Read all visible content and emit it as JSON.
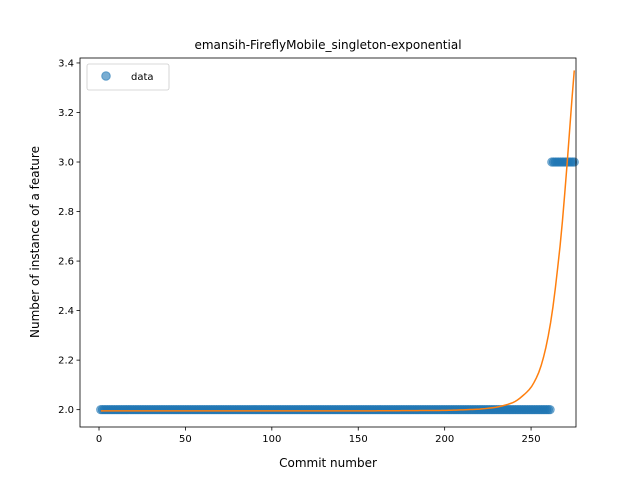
{
  "chart_data": {
    "type": "scatter",
    "title": "emansih-FireflyMobile_singleton-exponential",
    "xlabel": "Commit number",
    "ylabel": "Number of instance of a feature",
    "xlim": [
      -11,
      276
    ],
    "ylim": [
      1.93,
      3.42
    ],
    "xticks": [
      0,
      50,
      100,
      150,
      200,
      250
    ],
    "yticks": [
      2.0,
      2.2,
      2.4,
      2.6,
      2.8,
      3.0,
      3.2,
      3.4
    ],
    "xtick_labels": [
      "0",
      "50",
      "100",
      "150",
      "200",
      "250"
    ],
    "ytick_labels": [
      "2.0",
      "2.2",
      "2.4",
      "2.6",
      "2.8",
      "3.0",
      "3.2",
      "3.4"
    ],
    "legend": {
      "placement": "top-left",
      "entries": [
        {
          "label": "data",
          "color": "#1f77b4",
          "marker": "circle"
        }
      ]
    },
    "grid": false,
    "series": [
      {
        "kind": "points",
        "name": "data",
        "color": "#1f77b4",
        "segments": [
          {
            "x_start": 1,
            "x_end": 261,
            "y": 2.0
          },
          {
            "x_start": 262,
            "x_end": 275,
            "y": 3.0
          }
        ]
      },
      {
        "kind": "line",
        "color": "#ff7f0e",
        "points": [
          [
            1,
            1.995
          ],
          [
            50,
            1.995
          ],
          [
            100,
            1.995
          ],
          [
            150,
            1.995
          ],
          [
            200,
            1.997
          ],
          [
            220,
            2.002
          ],
          [
            230,
            2.01
          ],
          [
            240,
            2.03
          ],
          [
            245,
            2.055
          ],
          [
            250,
            2.09
          ],
          [
            255,
            2.16
          ],
          [
            260,
            2.3
          ],
          [
            265,
            2.55
          ],
          [
            270,
            2.92
          ],
          [
            273,
            3.2
          ],
          [
            275,
            3.37
          ]
        ]
      }
    ]
  }
}
